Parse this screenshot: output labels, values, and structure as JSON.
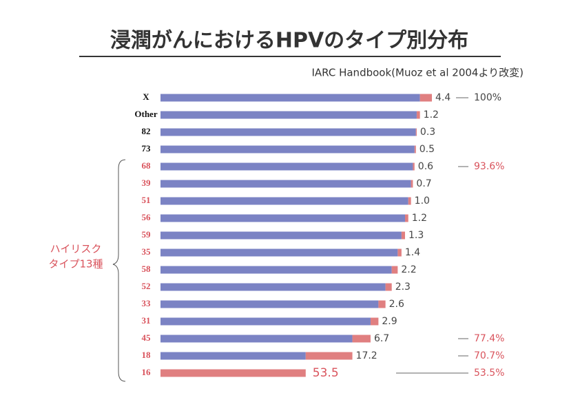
{
  "chart_data": {
    "type": "cumulative-bar",
    "title": "浸潤がんにおけるHPVのタイプ別分布",
    "subtitle": "IARC Handbook(Muoz et al 2004より改変)",
    "categories": [
      "X",
      "Other",
      "82",
      "73",
      "68",
      "39",
      "51",
      "56",
      "59",
      "35",
      "58",
      "52",
      "33",
      "31",
      "45",
      "18",
      "16"
    ],
    "category_colors": [
      "#111111",
      "#111111",
      "#111111",
      "#111111",
      "#d9535c",
      "#d9535c",
      "#d9535c",
      "#d9535c",
      "#d9535c",
      "#d9535c",
      "#d9535c",
      "#d9535c",
      "#d9535c",
      "#d9535c",
      "#d9535c",
      "#d9535c",
      "#d9535c"
    ],
    "values": [
      4.4,
      1.2,
      0.3,
      0.5,
      0.6,
      0.7,
      1.0,
      1.2,
      1.3,
      1.4,
      2.2,
      2.3,
      2.6,
      2.9,
      6.7,
      17.2,
      53.5
    ],
    "value_labels": [
      "4.4",
      "1.2",
      "0.3",
      "0.5",
      "0.6",
      "0.7",
      "1.0",
      "1.2",
      "1.3",
      "1.4",
      "2.2",
      "2.3",
      "2.6",
      "2.9",
      "6.7",
      "17.2",
      "53.5"
    ],
    "cumulative_labels": [
      "100%",
      null,
      null,
      null,
      "93.6%",
      null,
      null,
      null,
      null,
      null,
      null,
      null,
      null,
      null,
      "77.4%",
      "70.7%",
      "53.5%"
    ],
    "cumulative_label_colors": [
      "#444444",
      null,
      null,
      null,
      "#d9535c",
      null,
      null,
      null,
      null,
      null,
      null,
      null,
      null,
      null,
      "#d9535c",
      "#d9535c",
      "#d9535c"
    ],
    "own_color": "#e07f80",
    "cumulative_color": "#7b83c4",
    "group_label": [
      "ハイリスク",
      "タイプ13種"
    ],
    "xlim": [
      0,
      100
    ]
  }
}
